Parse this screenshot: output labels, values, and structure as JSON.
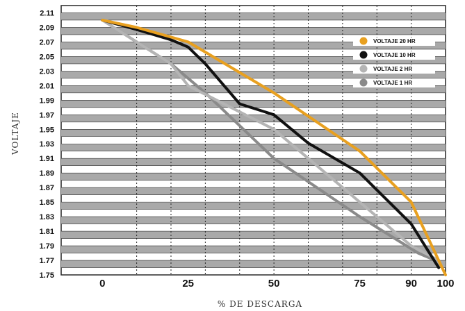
{
  "chart_data": {
    "type": "line",
    "title": "",
    "xlabel": "% DE DESCARGA",
    "ylabel": "VOLTAJE",
    "xlim": [
      -12,
      100
    ],
    "ylim": [
      1.75,
      2.12
    ],
    "x_ticks": [
      "0",
      "25",
      "50",
      "75",
      "90",
      "100"
    ],
    "y_ticks": [
      "2.11",
      "2.09",
      "2.07",
      "2.05",
      "2.03",
      "2.01",
      "1.99",
      "1.97",
      "1.95",
      "1.93",
      "1.91",
      "1.89",
      "1.87",
      "1.85",
      "1.83",
      "1.81",
      "1.79",
      "1.77",
      "1.75"
    ],
    "grid": true,
    "legend_position": "top-right",
    "series": [
      {
        "name": "VOLTAJE 20  HR",
        "color": "#e8a020",
        "x": [
          0,
          10,
          25,
          50,
          75,
          90,
          100
        ],
        "y": [
          2.1,
          2.09,
          2.07,
          2.0,
          1.92,
          1.85,
          1.75
        ]
      },
      {
        "name": "VOLTAJE 10  HR",
        "color": "#111111",
        "x": [
          0,
          10,
          20,
          25,
          30,
          40,
          50,
          60,
          75,
          90,
          98
        ],
        "y": [
          2.1,
          2.087,
          2.073,
          2.063,
          2.04,
          1.985,
          1.97,
          1.931,
          1.89,
          1.82,
          1.76
        ]
      },
      {
        "name": "VOLTAJE 2  HR",
        "color": "#b4b4b4",
        "x": [
          0,
          10,
          20,
          25,
          50,
          60,
          75,
          90,
          98
        ],
        "y": [
          2.1,
          2.07,
          2.04,
          2.01,
          1.95,
          1.91,
          1.85,
          1.79,
          1.77
        ]
      },
      {
        "name": "VOLTAJE 1  HR",
        "color": "#8a8a8a",
        "x": [
          0,
          10,
          20,
          30,
          50,
          75,
          92,
          97
        ],
        "y": [
          2.1,
          2.07,
          2.04,
          2.0,
          1.91,
          1.83,
          1.78,
          1.77
        ]
      }
    ]
  }
}
